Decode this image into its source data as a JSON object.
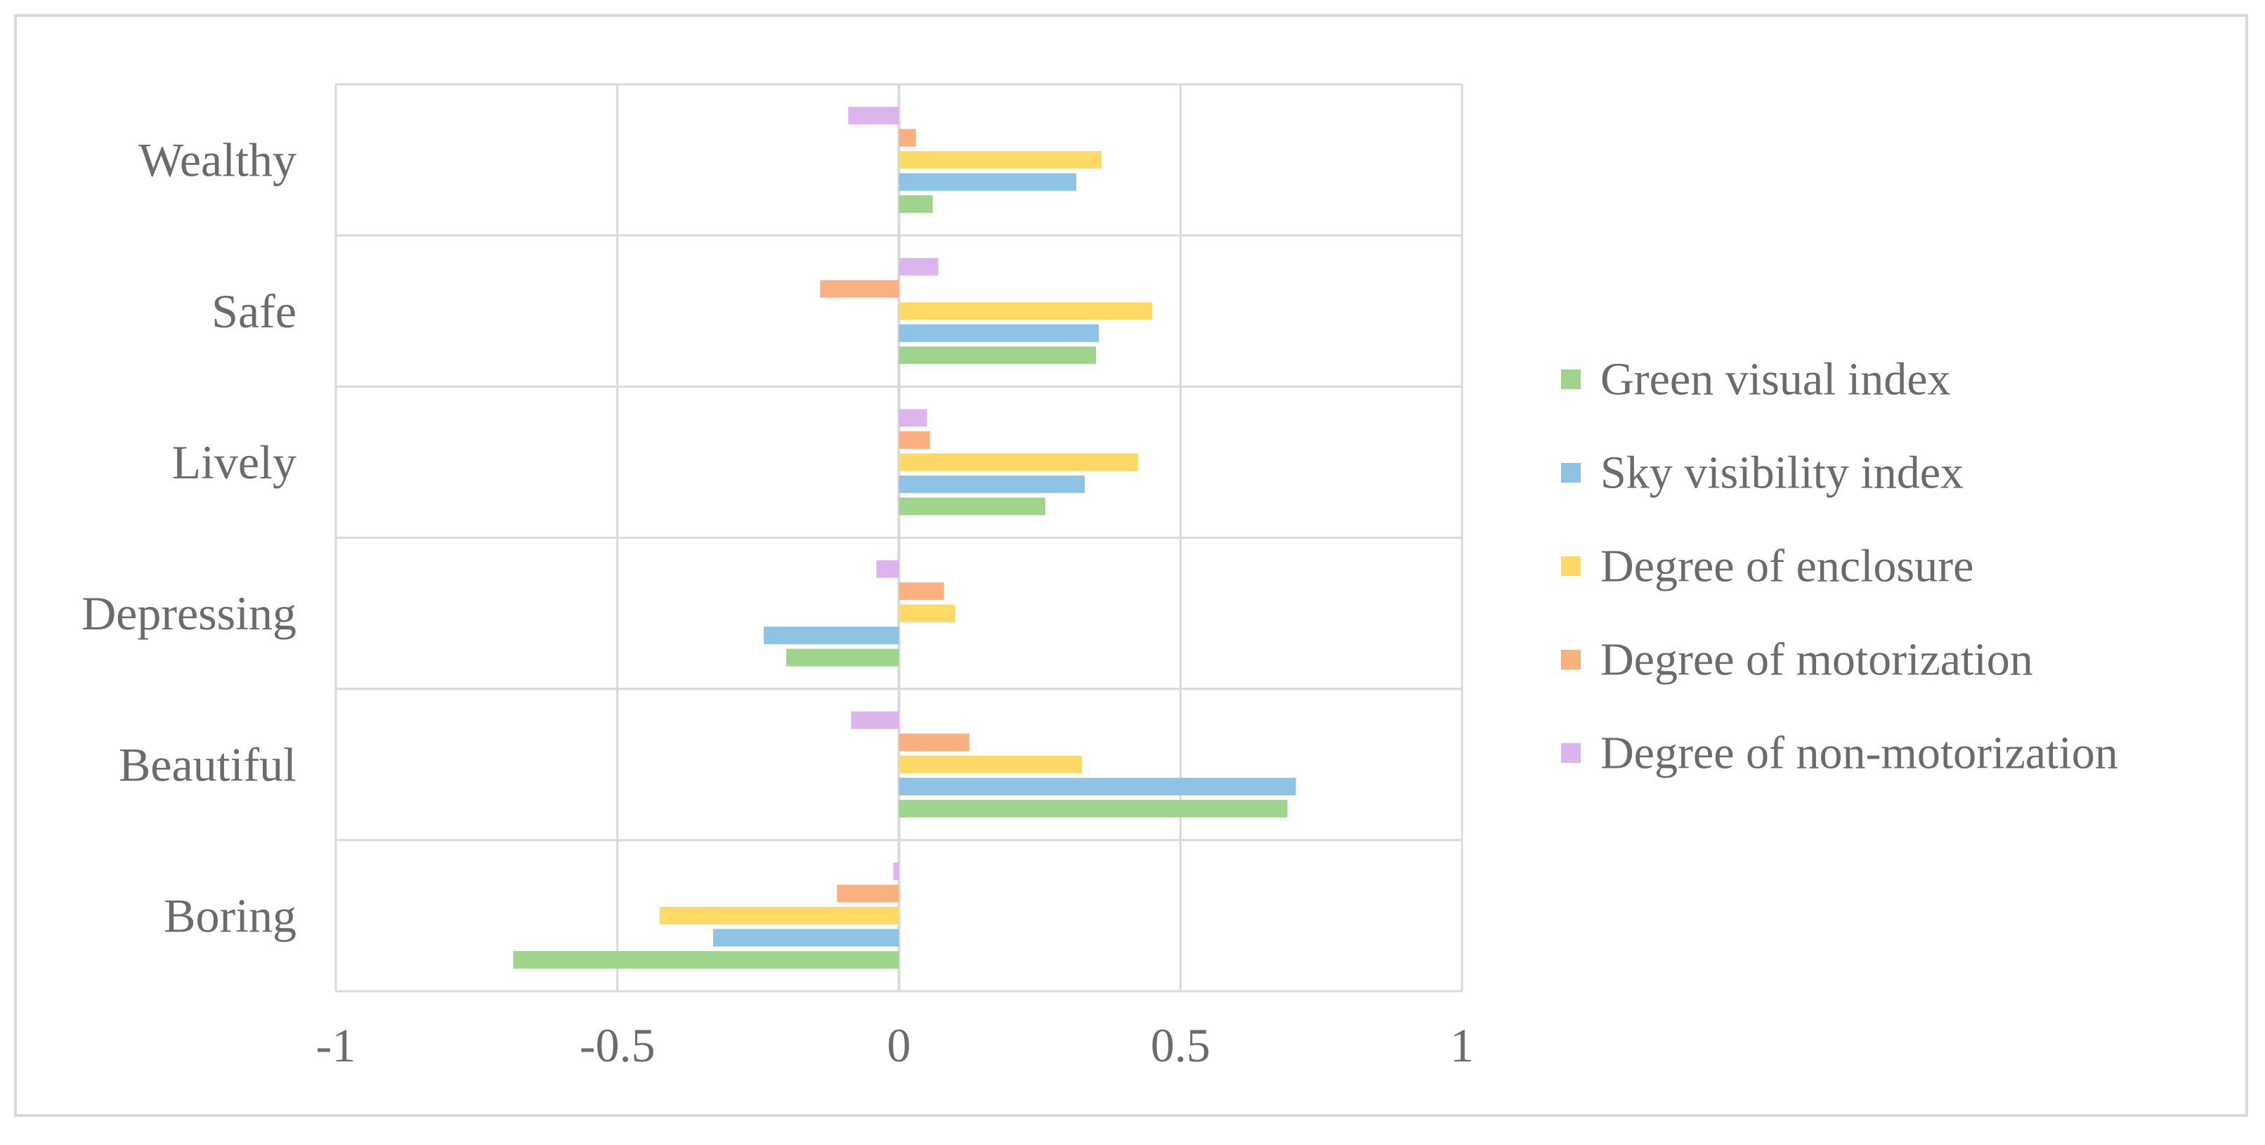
{
  "chart_data": {
    "type": "bar",
    "orientation": "horizontal",
    "title": "",
    "xlabel": "",
    "ylabel": "",
    "xlim": [
      -1,
      1
    ],
    "xticks": [
      -1,
      -0.5,
      0,
      0.5,
      1
    ],
    "xtick_labels": [
      "-1",
      "-0.5",
      "0",
      "0.5",
      "1"
    ],
    "grid": true,
    "legend_position": "right",
    "categories": [
      "Wealthy",
      "Safe",
      "Lively",
      "Depressing",
      "Beautiful",
      "Boring"
    ],
    "series": [
      {
        "name": "Degree of non-motorization",
        "color": "#dcb5ee",
        "values": [
          -0.09,
          0.07,
          0.05,
          -0.04,
          -0.085,
          -0.01
        ]
      },
      {
        "name": "Degree of motorization",
        "color": "#fbb07f",
        "values": [
          0.03,
          -0.14,
          0.055,
          0.08,
          0.125,
          -0.11
        ]
      },
      {
        "name": "Degree of enclosure",
        "color": "#ffd966",
        "values": [
          0.36,
          0.45,
          0.425,
          0.1,
          0.325,
          -0.425
        ]
      },
      {
        "name": "Sky visibility index",
        "color": "#8ec3e6",
        "values": [
          0.315,
          0.355,
          0.33,
          -0.24,
          0.705,
          -0.33
        ]
      },
      {
        "name": "Green visual index",
        "color": "#9ed48b",
        "values": [
          0.06,
          0.35,
          0.26,
          -0.2,
          0.69,
          -0.685
        ]
      }
    ]
  }
}
